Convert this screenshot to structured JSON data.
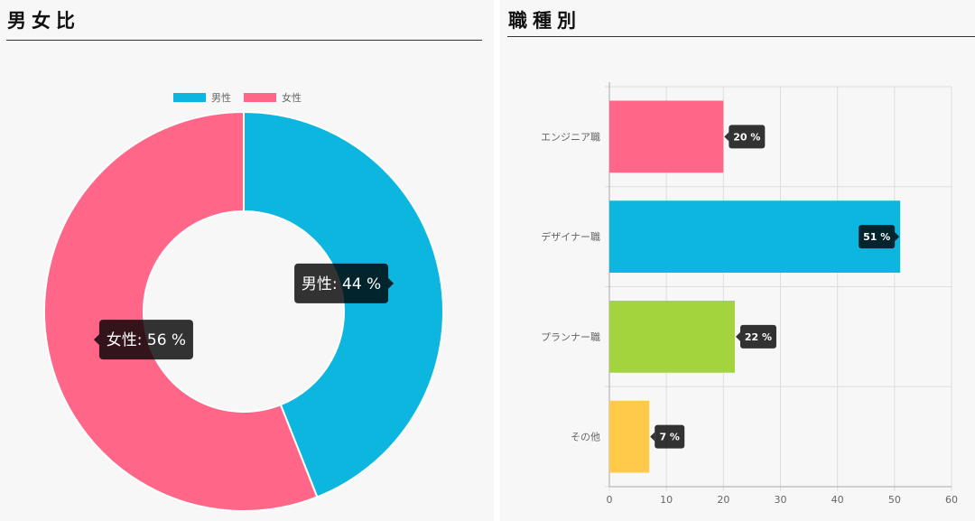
{
  "panels": {
    "gender": {
      "title": "男女比"
    },
    "jobs": {
      "title": "職種別"
    }
  },
  "chart_data": [
    {
      "type": "pie",
      "variant": "doughnut",
      "title": "男女比",
      "legend_position": "top",
      "series": [
        {
          "name": "男性",
          "value": 44,
          "color": "#0db6de",
          "label": "男性: 44 %"
        },
        {
          "name": "女性",
          "value": 56,
          "color": "#ff6688",
          "label": "女性: 56 %"
        }
      ]
    },
    {
      "type": "bar",
      "orientation": "horizontal",
      "title": "職種別",
      "categories": [
        "エンジニア職",
        "デザイナー職",
        "プランナー職",
        "その他"
      ],
      "values": [
        20,
        51,
        22,
        7
      ],
      "value_labels": [
        "20 %",
        "51 %",
        "22 %",
        "7 %"
      ],
      "colors": [
        "#ff6688",
        "#0db6de",
        "#a3d33d",
        "#ffc94a"
      ],
      "xlim": [
        0,
        60
      ],
      "xticks": [
        0,
        10,
        20,
        30,
        40,
        50,
        60
      ],
      "grid": true
    }
  ]
}
